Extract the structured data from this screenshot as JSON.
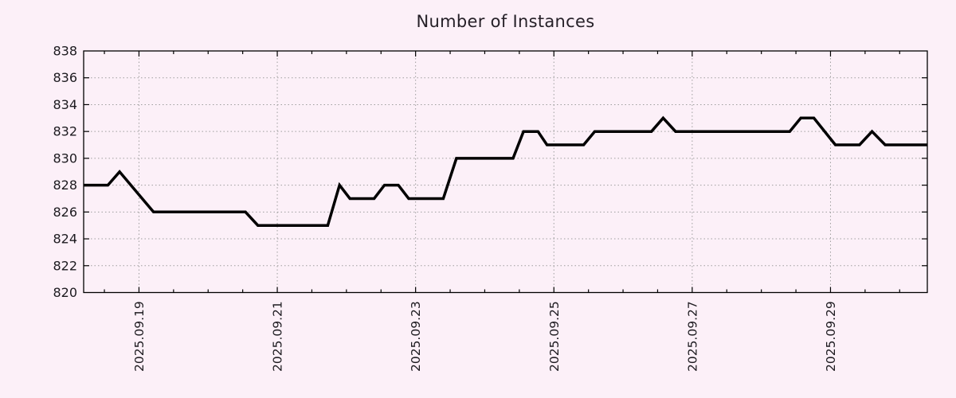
{
  "page": {
    "background_color": "#fcf0f8"
  },
  "chart_data": {
    "type": "line",
    "title": "Number of Instances",
    "legend": "none",
    "grid": {
      "style": "dotted",
      "color": "#9e9e9e",
      "on": true
    },
    "colors": {
      "background": "#fcf0f8",
      "axis": "#000000",
      "line": "#000000",
      "text": "#1c1a1f",
      "title_text": "#262028"
    },
    "x_axis": {
      "kind": "time",
      "unit": "day of 2025-09 (fractional)",
      "range_days": [
        18.2,
        30.4
      ],
      "minor_tick_step_days": 0.5,
      "major_ticks": [
        {
          "day": 19,
          "label": "2025.09.19"
        },
        {
          "day": 21,
          "label": "2025.09.21"
        },
        {
          "day": 23,
          "label": "2025.09.23"
        },
        {
          "day": 25,
          "label": "2025.09.25"
        },
        {
          "day": 27,
          "label": "2025.09.27"
        },
        {
          "day": 29,
          "label": "2025.09.29"
        }
      ]
    },
    "y_axis": {
      "range": [
        820,
        838
      ],
      "major_tick_step": 2,
      "tick_labels": [
        "820",
        "822",
        "824",
        "826",
        "828",
        "830",
        "832",
        "834",
        "836",
        "838"
      ]
    },
    "series": [
      {
        "name": "instances",
        "color": "#000000",
        "line_width": 3.5,
        "points_day_value": [
          [
            18.2,
            828
          ],
          [
            18.55,
            828
          ],
          [
            18.72,
            829
          ],
          [
            19.21,
            826
          ],
          [
            20.54,
            826
          ],
          [
            20.72,
            825
          ],
          [
            21.73,
            825
          ],
          [
            21.9,
            828
          ],
          [
            22.05,
            827
          ],
          [
            22.4,
            827
          ],
          [
            22.55,
            828
          ],
          [
            22.75,
            828
          ],
          [
            22.9,
            827
          ],
          [
            23.4,
            827
          ],
          [
            23.59,
            830
          ],
          [
            24.41,
            830
          ],
          [
            24.56,
            832
          ],
          [
            24.77,
            832
          ],
          [
            24.9,
            831
          ],
          [
            25.43,
            831
          ],
          [
            25.59,
            832
          ],
          [
            26.41,
            832
          ],
          [
            26.58,
            833
          ],
          [
            26.76,
            832
          ],
          [
            28.41,
            832
          ],
          [
            28.57,
            833
          ],
          [
            28.76,
            833
          ],
          [
            29.07,
            831
          ],
          [
            29.42,
            831
          ],
          [
            29.6,
            832
          ],
          [
            29.79,
            831
          ],
          [
            30.4,
            831
          ]
        ]
      }
    ]
  }
}
